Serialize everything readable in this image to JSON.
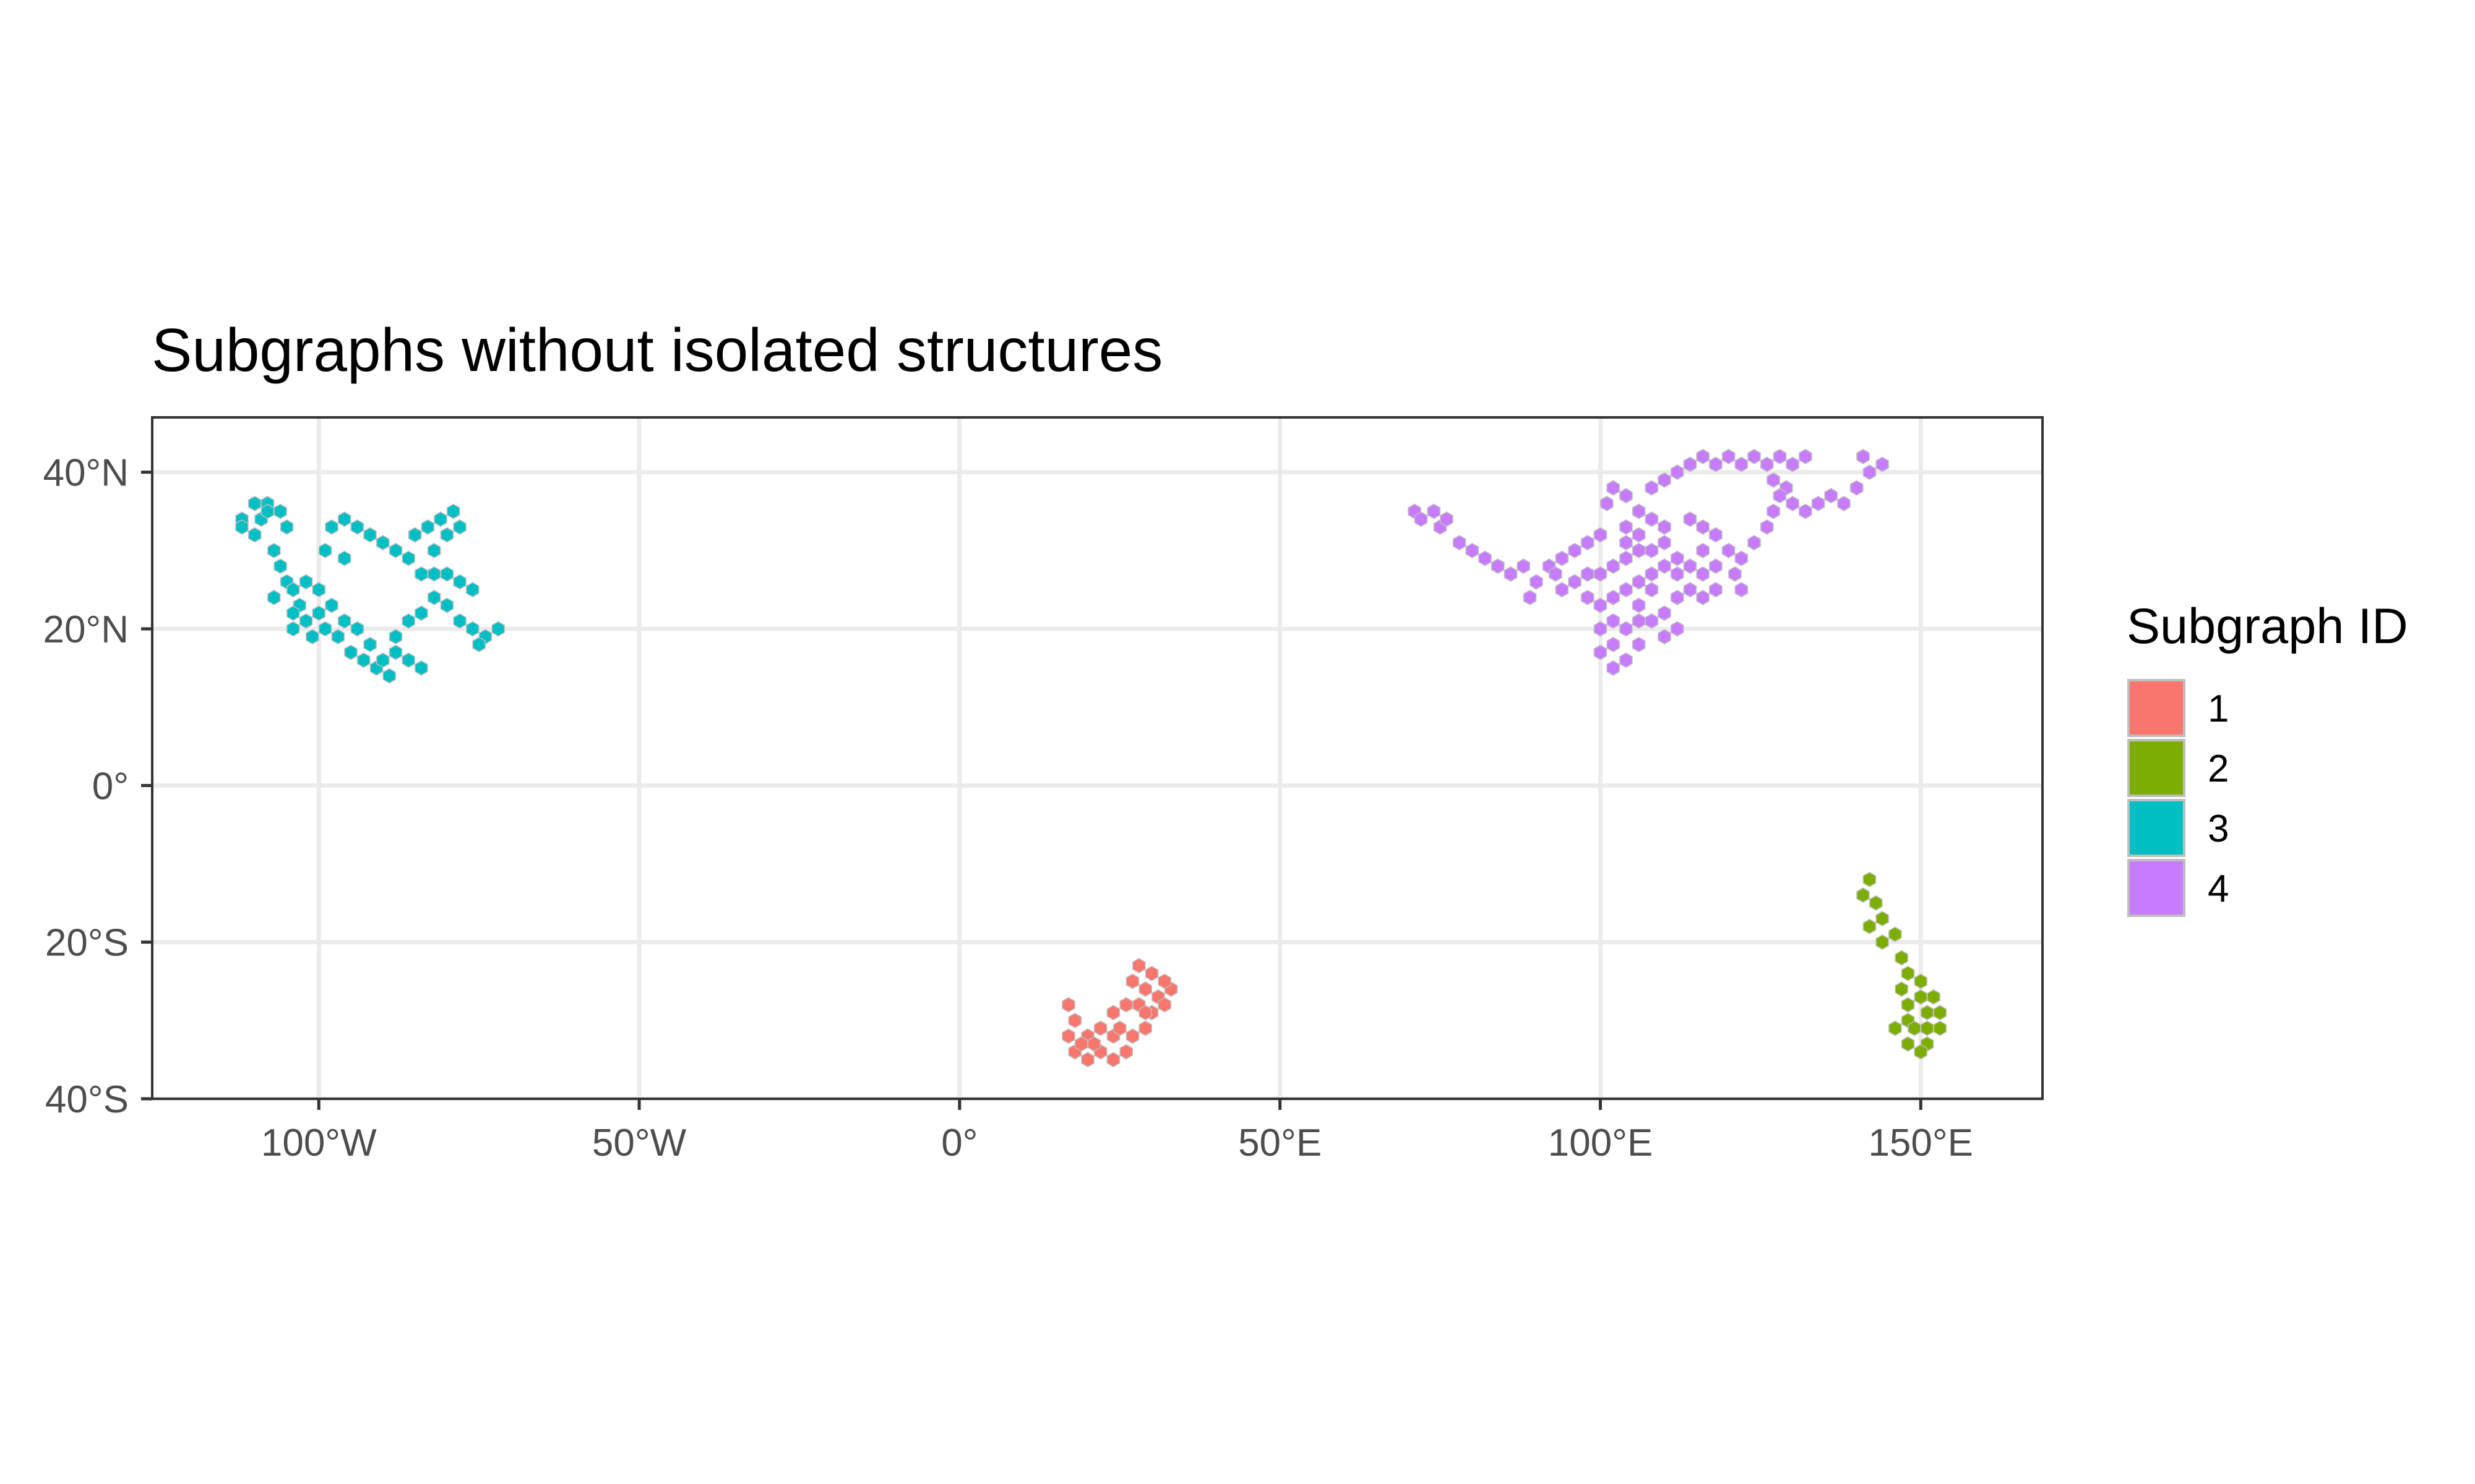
{
  "chart_data": {
    "type": "map",
    "title": "Subgraphs without isolated structures",
    "xlim": [
      -126,
      169
    ],
    "ylim": [
      -40,
      47
    ],
    "x_ticks": [
      {
        "value": -100,
        "label": "100°W"
      },
      {
        "value": -50,
        "label": "50°W"
      },
      {
        "value": 0,
        "label": "0°"
      },
      {
        "value": 50,
        "label": "50°E"
      },
      {
        "value": 100,
        "label": "100°E"
      },
      {
        "value": 150,
        "label": "150°E"
      }
    ],
    "y_ticks": [
      {
        "value": 40,
        "label": "40°N"
      },
      {
        "value": 20,
        "label": "20°N"
      },
      {
        "value": 0,
        "label": "0°"
      },
      {
        "value": -20,
        "label": "20°S"
      },
      {
        "value": -40,
        "label": "40°S"
      }
    ],
    "grid": true,
    "legend": {
      "title": "Subgraph ID",
      "placement": "right",
      "items": [
        {
          "label": "1",
          "color": "#F8766D"
        },
        {
          "label": "2",
          "color": "#7CAE00"
        },
        {
          "label": "3",
          "color": "#00BFC4"
        },
        {
          "label": "4",
          "color": "#C77CFF"
        }
      ]
    },
    "hex_size_degrees": 1.8,
    "regions": [
      {
        "id": "3",
        "color": "#00BFC4",
        "cells": [
          [
            -112,
            34
          ],
          [
            -112,
            33
          ],
          [
            -110,
            36
          ],
          [
            -109,
            34
          ],
          [
            -108,
            36
          ],
          [
            -108,
            35
          ],
          [
            -106,
            35
          ],
          [
            -105,
            33
          ],
          [
            -110,
            32
          ],
          [
            -107,
            30
          ],
          [
            -106,
            28
          ],
          [
            -105,
            26
          ],
          [
            -107,
            24
          ],
          [
            -104,
            25
          ],
          [
            -103,
            23
          ],
          [
            -102,
            21
          ],
          [
            -104,
            20
          ],
          [
            -100,
            22
          ],
          [
            -99,
            20
          ],
          [
            -101,
            19
          ],
          [
            -97,
            19
          ],
          [
            -95,
            17
          ],
          [
            -93,
            16
          ],
          [
            -91,
            15
          ],
          [
            -89,
            14
          ],
          [
            -90,
            16
          ],
          [
            -92,
            18
          ],
          [
            -94,
            20
          ],
          [
            -96,
            21
          ],
          [
            -98,
            23
          ],
          [
            -100,
            25
          ],
          [
            -102,
            26
          ],
          [
            -104,
            22
          ],
          [
            -88,
            19
          ],
          [
            -86,
            21
          ],
          [
            -84,
            22
          ],
          [
            -82,
            24
          ],
          [
            -80,
            23
          ],
          [
            -78,
            21
          ],
          [
            -76,
            20
          ],
          [
            -74,
            19
          ],
          [
            -72,
            20
          ],
          [
            -75,
            18
          ],
          [
            -98,
            33
          ],
          [
            -96,
            34
          ],
          [
            -94,
            33
          ],
          [
            -92,
            32
          ],
          [
            -90,
            31
          ],
          [
            -88,
            30
          ],
          [
            -86,
            29
          ],
          [
            -85,
            32
          ],
          [
            -83,
            33
          ],
          [
            -81,
            34
          ],
          [
            -79,
            35
          ],
          [
            -78,
            33
          ],
          [
            -80,
            32
          ],
          [
            -82,
            30
          ],
          [
            -84,
            27
          ],
          [
            -82,
            27
          ],
          [
            -80,
            27
          ],
          [
            -78,
            26
          ],
          [
            -76,
            25
          ],
          [
            -99,
            30
          ],
          [
            -96,
            29
          ],
          [
            -86,
            16
          ],
          [
            -84,
            15
          ],
          [
            -88,
            17
          ]
        ]
      },
      {
        "id": "4",
        "color": "#C77CFF",
        "cells": [
          [
            71,
            35
          ],
          [
            72,
            34
          ],
          [
            74,
            35
          ],
          [
            75,
            33
          ],
          [
            76,
            34
          ],
          [
            78,
            31
          ],
          [
            80,
            30
          ],
          [
            82,
            29
          ],
          [
            84,
            28
          ],
          [
            86,
            27
          ],
          [
            88,
            28
          ],
          [
            90,
            26
          ],
          [
            89,
            24
          ],
          [
            92,
            28
          ],
          [
            94,
            29
          ],
          [
            96,
            30
          ],
          [
            98,
            31
          ],
          [
            100,
            32
          ],
          [
            101,
            36
          ],
          [
            102,
            38
          ],
          [
            104,
            37
          ],
          [
            106,
            35
          ],
          [
            108,
            34
          ],
          [
            110,
            33
          ],
          [
            108,
            38
          ],
          [
            110,
            39
          ],
          [
            112,
            40
          ],
          [
            114,
            41
          ],
          [
            116,
            42
          ],
          [
            118,
            41
          ],
          [
            120,
            42
          ],
          [
            122,
            41
          ],
          [
            124,
            42
          ],
          [
            126,
            41
          ],
          [
            128,
            42
          ],
          [
            130,
            41
          ],
          [
            132,
            42
          ],
          [
            127,
            39
          ],
          [
            129,
            38
          ],
          [
            128,
            37
          ],
          [
            130,
            36
          ],
          [
            132,
            35
          ],
          [
            134,
            36
          ],
          [
            136,
            37
          ],
          [
            138,
            36
          ],
          [
            140,
            38
          ],
          [
            142,
            40
          ],
          [
            141,
            42
          ],
          [
            144,
            41
          ],
          [
            127,
            35
          ],
          [
            126,
            33
          ],
          [
            124,
            31
          ],
          [
            122,
            29
          ],
          [
            114,
            34
          ],
          [
            116,
            33
          ],
          [
            118,
            32
          ],
          [
            120,
            30
          ],
          [
            121,
            27
          ],
          [
            122,
            25
          ],
          [
            118,
            25
          ],
          [
            116,
            27
          ],
          [
            114,
            28
          ],
          [
            112,
            29
          ],
          [
            110,
            28
          ],
          [
            108,
            27
          ],
          [
            106,
            26
          ],
          [
            104,
            25
          ],
          [
            102,
            24
          ],
          [
            100,
            23
          ],
          [
            98,
            24
          ],
          [
            96,
            26
          ],
          [
            94,
            25
          ],
          [
            93,
            27
          ],
          [
            100,
            20
          ],
          [
            102,
            18
          ],
          [
            104,
            16
          ],
          [
            106,
            18
          ],
          [
            108,
            21
          ],
          [
            110,
            22
          ],
          [
            112,
            24
          ],
          [
            112,
            20
          ],
          [
            110,
            19
          ],
          [
            100,
            17
          ],
          [
            102,
            15
          ],
          [
            106,
            30
          ],
          [
            104,
            31
          ],
          [
            102,
            28
          ],
          [
            100,
            27
          ],
          [
            98,
            27
          ],
          [
            104,
            29
          ],
          [
            106,
            23
          ],
          [
            108,
            30
          ],
          [
            110,
            31
          ],
          [
            112,
            27
          ],
          [
            114,
            25
          ],
          [
            116,
            24
          ],
          [
            104,
            20
          ],
          [
            106,
            21
          ],
          [
            102,
            21
          ],
          [
            104,
            33
          ],
          [
            106,
            32
          ],
          [
            108,
            25
          ],
          [
            116,
            30
          ],
          [
            118,
            28
          ]
        ]
      },
      {
        "id": "1",
        "color": "#F8766D",
        "cells": [
          [
            17,
            -28
          ],
          [
            18,
            -30
          ],
          [
            17,
            -32
          ],
          [
            18,
            -34
          ],
          [
            20,
            -35
          ],
          [
            22,
            -34
          ],
          [
            24,
            -35
          ],
          [
            26,
            -34
          ],
          [
            27,
            -32
          ],
          [
            29,
            -31
          ],
          [
            30,
            -29
          ],
          [
            31,
            -27
          ],
          [
            33,
            -26
          ],
          [
            32,
            -25
          ],
          [
            30,
            -24
          ],
          [
            28,
            -23
          ],
          [
            27,
            -25
          ],
          [
            29,
            -26
          ],
          [
            26,
            -28
          ],
          [
            24,
            -29
          ],
          [
            22,
            -31
          ],
          [
            20,
            -32
          ],
          [
            24,
            -32
          ],
          [
            28,
            -28
          ],
          [
            32,
            -28
          ],
          [
            21,
            -33
          ],
          [
            25,
            -31
          ],
          [
            29,
            -29
          ],
          [
            19,
            -33
          ]
        ]
      },
      {
        "id": "2",
        "color": "#7CAE00",
        "cells": [
          [
            142,
            -12
          ],
          [
            141,
            -14
          ],
          [
            143,
            -15
          ],
          [
            144,
            -17
          ],
          [
            142,
            -18
          ],
          [
            144,
            -20
          ],
          [
            146,
            -19
          ],
          [
            147,
            -22
          ],
          [
            148,
            -24
          ],
          [
            150,
            -25
          ],
          [
            152,
            -27
          ],
          [
            153,
            -29
          ],
          [
            153,
            -31
          ],
          [
            151,
            -33
          ],
          [
            150,
            -34
          ],
          [
            148,
            -33
          ],
          [
            146,
            -31
          ],
          [
            148,
            -30
          ],
          [
            148,
            -28
          ],
          [
            150,
            -27
          ],
          [
            151,
            -29
          ],
          [
            151,
            -31
          ],
          [
            149,
            -31
          ],
          [
            147,
            -26
          ]
        ]
      }
    ]
  }
}
